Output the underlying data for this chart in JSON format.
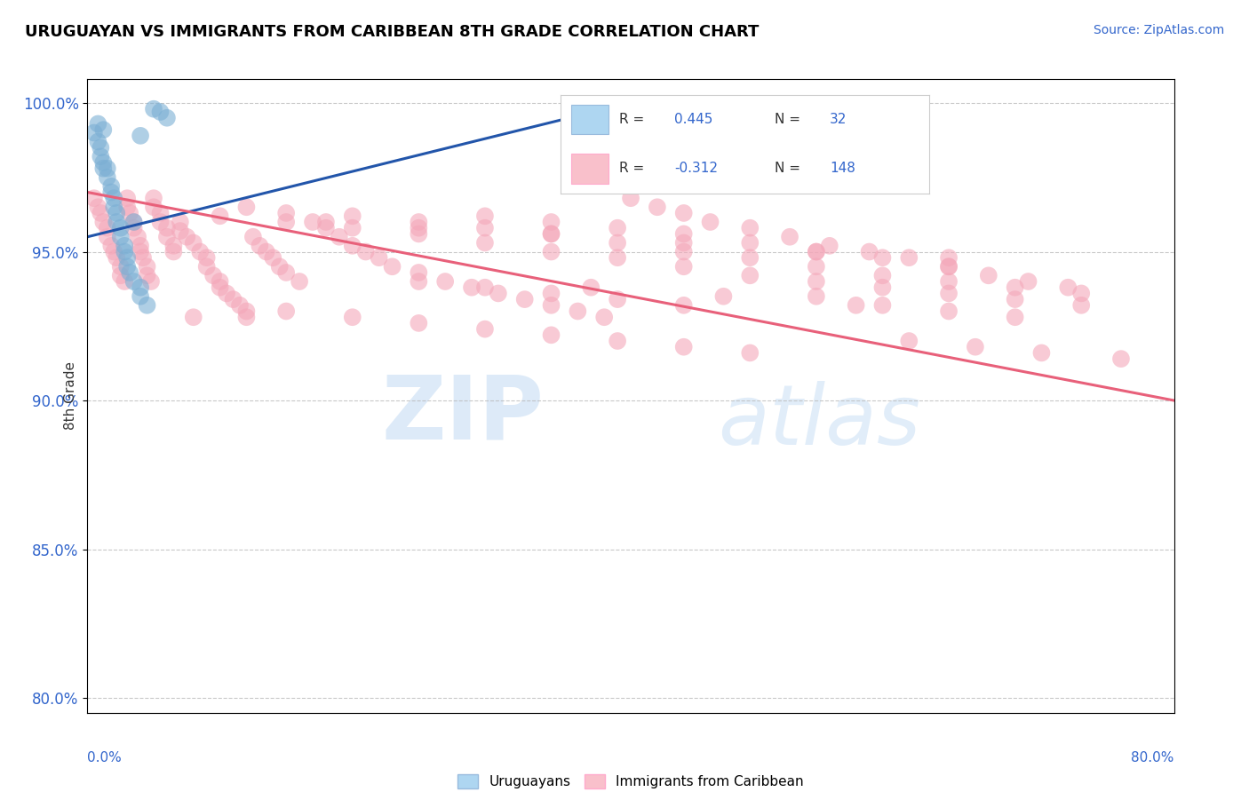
{
  "title": "URUGUAYAN VS IMMIGRANTS FROM CARIBBEAN 8TH GRADE CORRELATION CHART",
  "source_text": "Source: ZipAtlas.com",
  "ylabel": "8th Grade",
  "watermark": "ZIPatlas",
  "xmin": 0.0,
  "xmax": 0.82,
  "ymin": 0.795,
  "ymax": 1.008,
  "yticks": [
    0.8,
    0.85,
    0.9,
    0.95,
    1.0
  ],
  "ytick_labels": [
    "80.0%",
    "85.0%",
    "90.0%",
    "95.0%",
    "100.0%"
  ],
  "blue_color": "#7BAFD4",
  "pink_color": "#F4A7B9",
  "blue_line_color": "#2255AA",
  "pink_line_color": "#E8607A",
  "legend_color_blue": "#AED6F1",
  "legend_color_pink": "#F9C0CB",
  "blue_scatter_x": [
    0.005,
    0.008,
    0.01,
    0.01,
    0.012,
    0.012,
    0.015,
    0.015,
    0.018,
    0.018,
    0.02,
    0.02,
    0.022,
    0.022,
    0.025,
    0.025,
    0.028,
    0.028,
    0.03,
    0.03,
    0.032,
    0.035,
    0.04,
    0.04,
    0.045,
    0.05,
    0.055,
    0.06,
    0.008,
    0.012,
    0.04,
    0.035
  ],
  "blue_scatter_y": [
    0.99,
    0.987,
    0.985,
    0.982,
    0.98,
    0.978,
    0.975,
    0.978,
    0.972,
    0.97,
    0.968,
    0.965,
    0.963,
    0.96,
    0.958,
    0.955,
    0.952,
    0.95,
    0.948,
    0.945,
    0.943,
    0.94,
    0.938,
    0.935,
    0.932,
    0.998,
    0.997,
    0.995,
    0.993,
    0.991,
    0.989,
    0.96
  ],
  "blue_line_x0": 0.0,
  "blue_line_x1": 0.4,
  "blue_line_y0": 0.955,
  "blue_line_y1": 0.999,
  "pink_line_x0": 0.0,
  "pink_line_x1": 0.82,
  "pink_line_y0": 0.97,
  "pink_line_y1": 0.9,
  "pink_scatter_x": [
    0.005,
    0.008,
    0.01,
    0.012,
    0.015,
    0.015,
    0.018,
    0.02,
    0.022,
    0.025,
    0.025,
    0.028,
    0.03,
    0.03,
    0.032,
    0.035,
    0.035,
    0.038,
    0.04,
    0.04,
    0.042,
    0.045,
    0.045,
    0.048,
    0.05,
    0.05,
    0.055,
    0.055,
    0.06,
    0.06,
    0.065,
    0.065,
    0.07,
    0.07,
    0.075,
    0.08,
    0.085,
    0.09,
    0.09,
    0.095,
    0.1,
    0.1,
    0.105,
    0.11,
    0.115,
    0.12,
    0.12,
    0.125,
    0.13,
    0.135,
    0.14,
    0.145,
    0.15,
    0.16,
    0.17,
    0.18,
    0.19,
    0.2,
    0.21,
    0.22,
    0.23,
    0.25,
    0.27,
    0.29,
    0.31,
    0.33,
    0.35,
    0.37,
    0.39,
    0.41,
    0.43,
    0.45,
    0.47,
    0.5,
    0.53,
    0.56,
    0.59,
    0.62,
    0.65,
    0.68,
    0.71,
    0.74,
    0.3,
    0.35,
    0.4,
    0.45,
    0.5,
    0.55,
    0.6,
    0.65,
    0.25,
    0.3,
    0.35,
    0.4,
    0.45,
    0.2,
    0.25,
    0.3,
    0.35,
    0.4,
    0.45,
    0.5,
    0.55,
    0.6,
    0.65,
    0.7,
    0.75,
    0.15,
    0.2,
    0.25,
    0.3,
    0.35,
    0.4,
    0.45,
    0.5,
    0.1,
    0.15,
    0.2,
    0.25,
    0.3,
    0.35,
    0.4,
    0.45,
    0.5,
    0.55,
    0.6,
    0.65,
    0.7,
    0.75,
    0.08,
    0.55,
    0.6,
    0.65,
    0.7,
    0.62,
    0.67,
    0.72,
    0.78,
    0.12,
    0.15,
    0.18,
    0.25,
    0.35,
    0.45,
    0.55,
    0.65,
    0.38,
    0.48,
    0.58
  ],
  "pink_scatter_y": [
    0.968,
    0.965,
    0.963,
    0.96,
    0.958,
    0.955,
    0.952,
    0.95,
    0.948,
    0.945,
    0.942,
    0.94,
    0.968,
    0.965,
    0.963,
    0.96,
    0.958,
    0.955,
    0.952,
    0.95,
    0.948,
    0.945,
    0.942,
    0.94,
    0.968,
    0.965,
    0.963,
    0.96,
    0.958,
    0.955,
    0.952,
    0.95,
    0.96,
    0.957,
    0.955,
    0.953,
    0.95,
    0.948,
    0.945,
    0.942,
    0.94,
    0.938,
    0.936,
    0.934,
    0.932,
    0.93,
    0.928,
    0.955,
    0.952,
    0.95,
    0.948,
    0.945,
    0.943,
    0.94,
    0.96,
    0.958,
    0.955,
    0.952,
    0.95,
    0.948,
    0.945,
    0.943,
    0.94,
    0.938,
    0.936,
    0.934,
    0.932,
    0.93,
    0.928,
    0.968,
    0.965,
    0.963,
    0.96,
    0.958,
    0.955,
    0.952,
    0.95,
    0.948,
    0.945,
    0.942,
    0.94,
    0.938,
    0.962,
    0.96,
    0.958,
    0.956,
    0.953,
    0.95,
    0.948,
    0.945,
    0.94,
    0.938,
    0.936,
    0.934,
    0.932,
    0.962,
    0.96,
    0.958,
    0.956,
    0.953,
    0.95,
    0.948,
    0.945,
    0.942,
    0.94,
    0.938,
    0.936,
    0.93,
    0.928,
    0.926,
    0.924,
    0.922,
    0.92,
    0.918,
    0.916,
    0.962,
    0.96,
    0.958,
    0.956,
    0.953,
    0.95,
    0.948,
    0.945,
    0.942,
    0.94,
    0.938,
    0.936,
    0.934,
    0.932,
    0.928,
    0.935,
    0.932,
    0.93,
    0.928,
    0.92,
    0.918,
    0.916,
    0.914,
    0.965,
    0.963,
    0.96,
    0.958,
    0.956,
    0.953,
    0.95,
    0.948,
    0.938,
    0.935,
    0.932
  ]
}
